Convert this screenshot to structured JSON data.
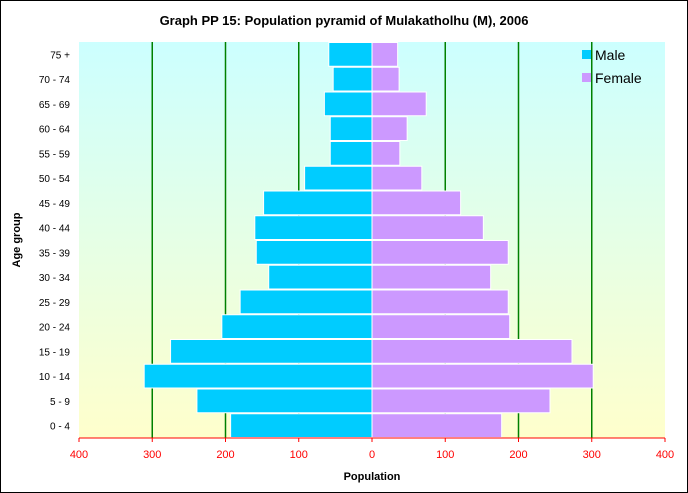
{
  "chart_data": {
    "type": "bar",
    "orientation": "horizontal-pyramid",
    "title": "Graph PP 15: Population pyramid of Mulakatholhu (M), 2006",
    "xlabel": "Population",
    "ylabel": "Age group",
    "xlim": [
      -400,
      400
    ],
    "x_ticks": [
      "400",
      "300",
      "200",
      "100",
      "0",
      "100",
      "200",
      "300",
      "400"
    ],
    "grid": true,
    "legend_position": "top-right",
    "categories": [
      "0 - 4",
      "5 - 9",
      "10 - 14",
      "15 - 19",
      "20 - 24",
      "25 - 29",
      "30 - 34",
      "35 - 39",
      "40 - 44",
      "45 - 49",
      "50 - 54",
      "55 - 59",
      "60 - 64",
      "65 - 69",
      "70 - 74",
      "75 +"
    ],
    "series": [
      {
        "name": "Male",
        "color": "#00ccff",
        "values": [
          193,
          239,
          311,
          275,
          205,
          180,
          141,
          158,
          160,
          148,
          92,
          57,
          57,
          65,
          53,
          59
        ]
      },
      {
        "name": "Female",
        "color": "#cc99ff",
        "values": [
          177,
          243,
          302,
          273,
          188,
          186,
          162,
          186,
          152,
          121,
          68,
          38,
          48,
          74,
          37,
          35
        ]
      }
    ],
    "colors": {
      "background_top": "#ccffff",
      "background_bottom": "#ffffcc",
      "grid": "#008000",
      "axis": "#ff0000"
    }
  }
}
